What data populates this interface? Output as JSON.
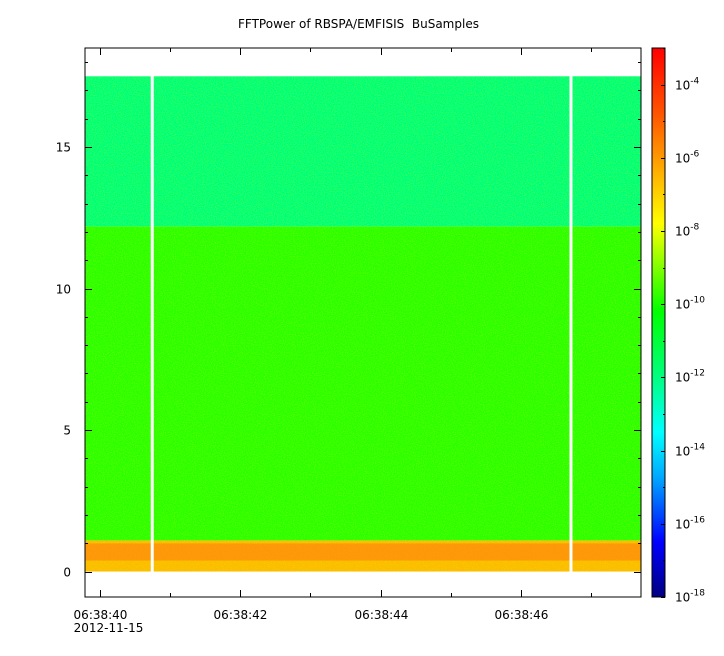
{
  "chart_data": {
    "type": "heatmap",
    "title": "FFTPower of RBSPA/EMFISIS  BuSamples",
    "xlabel": "",
    "ylabel": "",
    "x_ticks": [
      {
        "label": "06:38:40",
        "sublabel": "2012-11-15",
        "t": 40
      },
      {
        "label": "06:38:42",
        "t": 42
      },
      {
        "label": "06:38:44",
        "t": 44
      },
      {
        "label": "06:38:46",
        "t": 46
      }
    ],
    "x_minor_ticks": [
      41,
      43,
      45,
      47
    ],
    "xlim_seconds": [
      39.78,
      47.72
    ],
    "y_ticks": [
      0,
      5,
      10,
      15
    ],
    "ylim": [
      -0.9,
      18.5
    ],
    "data_y_range": [
      0,
      17.5
    ],
    "gaps_seconds": [
      40.74,
      46.72
    ],
    "bands": [
      {
        "y0": 0.0,
        "y1": 1.1,
        "log10_power": -6.6
      },
      {
        "y0": 1.1,
        "y1": 12.2,
        "log10_power": -9.8
      },
      {
        "y0": 12.2,
        "y1": 17.5,
        "log10_power": -11.9
      }
    ],
    "colorbar": {
      "scale": "log",
      "range": [
        1e-18,
        0.001
      ],
      "tick_exponents": [
        -4,
        -6,
        -8,
        -10,
        -12,
        -14,
        -16,
        -18
      ],
      "tick_base": "10",
      "colors": [
        "#000080",
        "#0000ff",
        "#00aaff",
        "#00ffff",
        "#00ff80",
        "#00ff00",
        "#80ff00",
        "#ffff00",
        "#ffaa00",
        "#ff5500",
        "#ff0000"
      ]
    }
  }
}
